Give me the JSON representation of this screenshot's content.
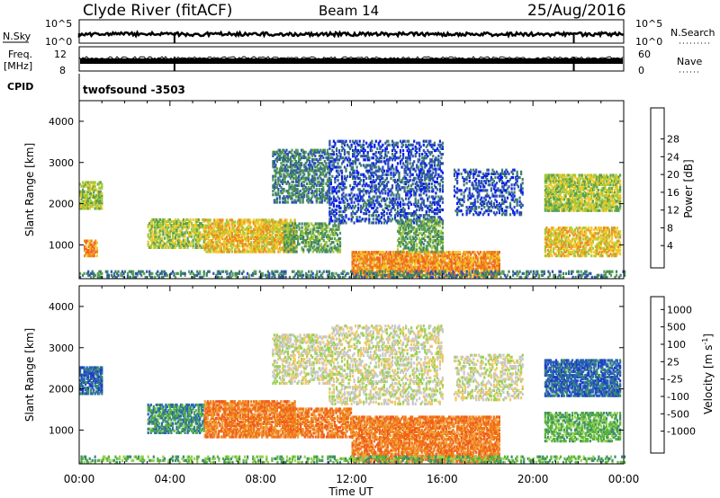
{
  "header": {
    "title": "Clyde River (fitACF)",
    "beam": "Beam 14",
    "date": "25/Aug/2016"
  },
  "top_panels": {
    "nsky_label": "N.Sky",
    "nsky_ticks": [
      "10^5",
      "10^0"
    ],
    "nsearch_label": "N.Search",
    "nsearch_ticks": [
      "10^5",
      "10^0"
    ],
    "freq_label": "Freq.",
    "freq_unit": "[MHz]",
    "freq_ticks": [
      "12",
      "8"
    ],
    "nave_label": "Nave",
    "nave_ticks": [
      "60",
      "0"
    ],
    "cpid_label": "CPID",
    "cpid_value": "twofsound -3503"
  },
  "x_axis": {
    "label": "Time UT",
    "ticks": [
      "00:00",
      "04:00",
      "08:00",
      "12:00",
      "16:00",
      "20:00",
      "00:00"
    ],
    "range_hours": [
      0,
      24
    ]
  },
  "chart_data": [
    {
      "type": "heatmap",
      "panel": "power",
      "xlabel": "Time UT",
      "ylabel": "Slant Range [km]",
      "x_range_hours": [
        0,
        24
      ],
      "ylim": [
        180,
        4500
      ],
      "y_ticks": [
        1000,
        2000,
        3000,
        4000
      ],
      "colorbar": {
        "label": "Power [dB]",
        "ticks": [
          "4",
          "8",
          "12",
          "16",
          "20",
          "24",
          "28"
        ],
        "colors": [
          "#0a1cf0",
          "#2d50b8",
          "#3f7f6a",
          "#58a050",
          "#a6c838",
          "#f0c828",
          "#f08a1e",
          "#f0641e",
          "#e62010"
        ]
      },
      "regions": [
        {
          "t": [
            0.0,
            1.0
          ],
          "r": [
            1850,
            2500
          ],
          "level": 4,
          "density": 0.7
        },
        {
          "t": [
            0.2,
            0.8
          ],
          "r": [
            700,
            1100
          ],
          "level": 6,
          "density": 0.6
        },
        {
          "t": [
            3.0,
            5.5
          ],
          "r": [
            900,
            1600
          ],
          "level": 4,
          "density": 0.6
        },
        {
          "t": [
            5.5,
            9.5
          ],
          "r": [
            800,
            1600
          ],
          "level": 5,
          "density": 0.7
        },
        {
          "t": [
            9.0,
            11.5
          ],
          "r": [
            800,
            1500
          ],
          "level": 3,
          "density": 0.5
        },
        {
          "t": [
            8.5,
            11.0
          ],
          "r": [
            2000,
            3300
          ],
          "level": 2,
          "density": 0.5
        },
        {
          "t": [
            11.0,
            16.0
          ],
          "r": [
            1500,
            3500
          ],
          "level": 1,
          "density": 0.35
        },
        {
          "t": [
            12.0,
            18.5
          ],
          "r": [
            200,
            800
          ],
          "level": 6,
          "density": 0.75
        },
        {
          "t": [
            14.0,
            16.0
          ],
          "r": [
            800,
            1600
          ],
          "level": 3,
          "density": 0.5
        },
        {
          "t": [
            16.5,
            19.5
          ],
          "r": [
            1700,
            2800
          ],
          "level": 1,
          "density": 0.3
        },
        {
          "t": [
            20.5,
            23.8
          ],
          "r": [
            1800,
            2700
          ],
          "level": 4,
          "density": 0.7
        },
        {
          "t": [
            20.5,
            23.8
          ],
          "r": [
            700,
            1400
          ],
          "level": 5,
          "density": 0.6
        },
        {
          "t": [
            0.0,
            24.0
          ],
          "r": [
            180,
            350
          ],
          "level": 2,
          "density": 0.35
        }
      ]
    },
    {
      "type": "heatmap",
      "panel": "velocity",
      "xlabel": "Time UT",
      "ylabel": "Slant Range [km]",
      "x_range_hours": [
        0,
        24
      ],
      "ylim": [
        180,
        4500
      ],
      "y_ticks": [
        1000,
        2000,
        3000,
        4000
      ],
      "colorbar": {
        "label": "Velocity [m s^-1]",
        "ticks": [
          "1000",
          "500",
          "100",
          "25",
          "-25",
          "-100",
          "-500",
          "-1000"
        ],
        "colors": [
          "#1e3cc8",
          "#2864b4",
          "#3c8c6e",
          "#5ab43c",
          "#96d250",
          "#c8c8c8",
          "#f0c864",
          "#f0a03c",
          "#f07814",
          "#f05a1e",
          "#e61e14"
        ]
      },
      "regions": [
        {
          "t": [
            0.0,
            1.0
          ],
          "r": [
            1850,
            2500
          ],
          "level": 1,
          "density": 0.7
        },
        {
          "t": [
            3.0,
            5.5
          ],
          "r": [
            900,
            1600
          ],
          "level": 2,
          "density": 0.6
        },
        {
          "t": [
            5.5,
            9.5
          ],
          "r": [
            800,
            1700
          ],
          "level": 8,
          "density": 0.7
        },
        {
          "t": [
            9.0,
            12.0
          ],
          "r": [
            800,
            1500
          ],
          "level": 8,
          "density": 0.6
        },
        {
          "t": [
            8.5,
            11.0
          ],
          "r": [
            2100,
            3300
          ],
          "level": 5,
          "density": 0.45
        },
        {
          "t": [
            11.0,
            16.0
          ],
          "r": [
            1600,
            3500
          ],
          "level": 5,
          "density": 0.35
        },
        {
          "t": [
            12.0,
            18.5
          ],
          "r": [
            200,
            1300
          ],
          "level": 8,
          "density": 0.7
        },
        {
          "t": [
            16.5,
            19.5
          ],
          "r": [
            1700,
            2800
          ],
          "level": 5,
          "density": 0.35
        },
        {
          "t": [
            20.5,
            23.8
          ],
          "r": [
            1800,
            2700
          ],
          "level": 1,
          "density": 0.7
        },
        {
          "t": [
            20.5,
            23.8
          ],
          "r": [
            700,
            1400
          ],
          "level": 3,
          "density": 0.55
        },
        {
          "t": [
            0.0,
            24.0
          ],
          "r": [
            180,
            350
          ],
          "level": 3,
          "density": 0.35
        }
      ]
    }
  ]
}
